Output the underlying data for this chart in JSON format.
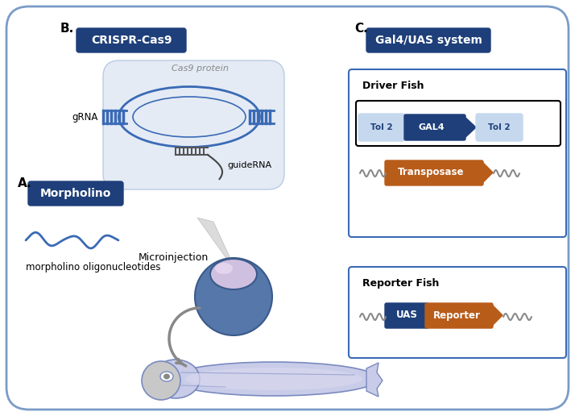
{
  "bg_color": "#ffffff",
  "outer_box_color": "#7a9cc7",
  "dark_blue": "#1e3f7a",
  "medium_blue": "#3a6ab5",
  "light_blue": "#c5d8ee",
  "orange": "#b85c1a",
  "gray": "#aaaaaa",
  "dark_gray": "#888888",
  "cas9_blob": "#e0e8f4",
  "cas9_blob_edge": "#b0c4de",
  "egg_top": "#d8c8e8",
  "egg_bottom": "#5577aa",
  "zebrafish_fill": "#c8cce8",
  "zebrafish_edge": "#7a8abf",
  "head_gray": "#c0c0c0",
  "label_A": "A.",
  "label_B": "B.",
  "label_C": "C.",
  "box_A_text": "Morpholino",
  "box_B_text": "CRISPR-Cas9",
  "box_C_text": "Gal4/UAS system",
  "morpholino_oligo_text": "morpholino oligonucleotides",
  "cas9_protein_text": "Cas9 protein",
  "guideRNA_text": "guideRNA",
  "gRNA_text": "gRNA",
  "microinjection_text": "Microinjection",
  "driver_fish_text": "Driver Fish",
  "reporter_fish_text": "Reporter Fish",
  "tol2_text": "Tol 2",
  "gal4_text": "GAL4",
  "transposase_text": "Transposase",
  "uas_text": "UAS",
  "reporter_text": "Reporter"
}
